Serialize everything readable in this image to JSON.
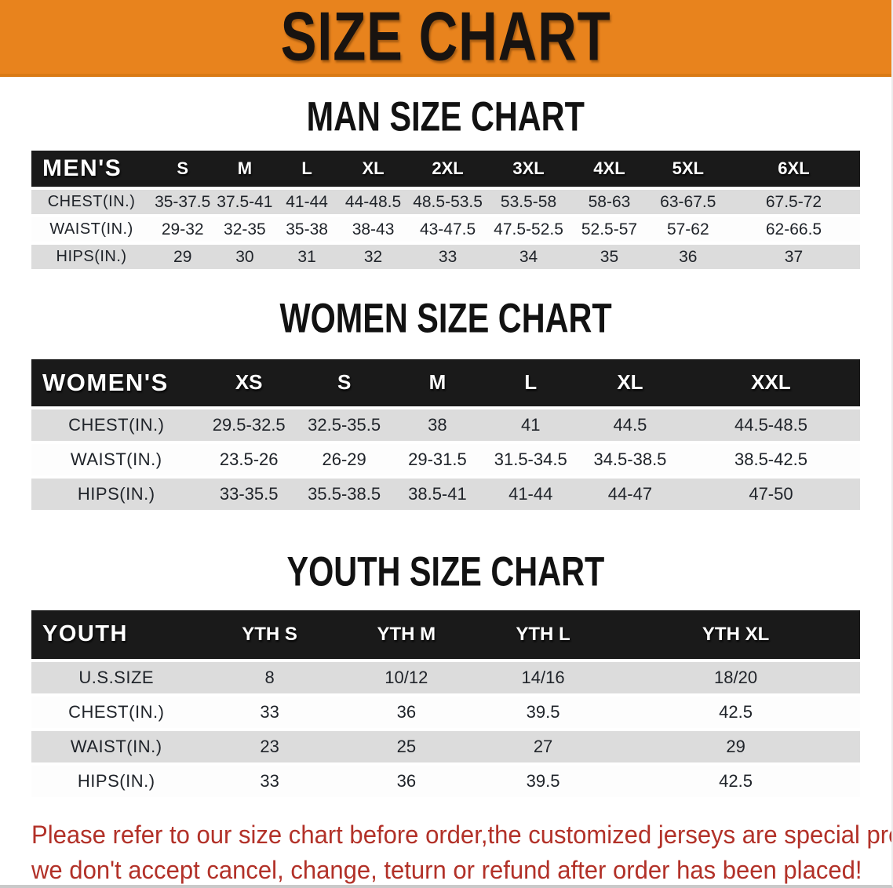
{
  "banner": {
    "title": "SIZE CHART"
  },
  "colors": {
    "banner_bg": "#E8831D",
    "header_bar": "#1A1A1A",
    "row_gray": "#DCDCDC",
    "notice_text": "#B23128"
  },
  "sections": [
    {
      "heading": "MAN SIZE CHART",
      "header_label": "MEN'S",
      "columns": [
        "S",
        "M",
        "L",
        "XL",
        "2XL",
        "3XL",
        "4XL",
        "5XL",
        "6XL"
      ],
      "rows": [
        {
          "label": "CHEST(IN.)",
          "values": [
            "35-37.5",
            "37.5-41",
            "41-44",
            "44-48.5",
            "48.5-53.5",
            "53.5-58",
            "58-63",
            "63-67.5",
            "67.5-72"
          ]
        },
        {
          "label": "WAIST(IN.)",
          "values": [
            "29-32",
            "32-35",
            "35-38",
            "38-43",
            "43-47.5",
            "47.5-52.5",
            "52.5-57",
            "57-62",
            "62-66.5"
          ]
        },
        {
          "label": "HIPS(IN.)",
          "values": [
            "29",
            "30",
            "31",
            "32",
            "33",
            "34",
            "35",
            "36",
            "37"
          ]
        }
      ]
    },
    {
      "heading": "WOMEN SIZE CHART",
      "header_label": "WOMEN'S",
      "columns": [
        "XS",
        "S",
        "M",
        "L",
        "XL",
        "XXL"
      ],
      "rows": [
        {
          "label": "CHEST(IN.)",
          "values": [
            "29.5-32.5",
            "32.5-35.5",
            "38",
            "41",
            "44.5",
            "44.5-48.5"
          ]
        },
        {
          "label": "WAIST(IN.)",
          "values": [
            "23.5-26",
            "26-29",
            "29-31.5",
            "31.5-34.5",
            "34.5-38.5",
            "38.5-42.5"
          ]
        },
        {
          "label": "HIPS(IN.)",
          "values": [
            "33-35.5",
            "35.5-38.5",
            "38.5-41",
            "41-44",
            "44-47",
            "47-50"
          ]
        }
      ]
    },
    {
      "heading": "YOUTH SIZE CHART",
      "header_label": "YOUTH",
      "columns": [
        "YTH S",
        "YTH M",
        "YTH L",
        "YTH XL"
      ],
      "rows": [
        {
          "label": "U.S.SIZE",
          "values": [
            "8",
            "10/12",
            "14/16",
            "18/20"
          ]
        },
        {
          "label": "CHEST(IN.)",
          "values": [
            "33",
            "36",
            "39.5",
            "42.5"
          ]
        },
        {
          "label": "WAIST(IN.)",
          "values": [
            "23",
            "25",
            "27",
            "29"
          ]
        },
        {
          "label": "HIPS(IN.)",
          "values": [
            "33",
            "36",
            "39.5",
            "42.5"
          ]
        }
      ]
    }
  ],
  "footer": {
    "line1": "Please refer to our size chart before order,the customized jerseys are special products,",
    "line2": "we don't accept cancel, change, teturn or refund after order has been placed!"
  }
}
